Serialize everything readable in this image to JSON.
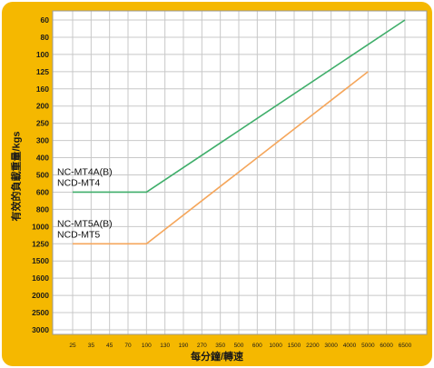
{
  "chart_data": {
    "type": "line",
    "ylabel": "有效的負載重量/kgs",
    "xlabel": "每分鐘/轉速",
    "y_ticks": [
      "60",
      "80",
      "100",
      "125",
      "160",
      "200",
      "250",
      "300",
      "400",
      "500",
      "600",
      "800",
      "1000",
      "1250",
      "1500",
      "1600",
      "2000",
      "2500",
      "3000"
    ],
    "x_ticks": [
      "25",
      "35",
      "45",
      "70",
      "100",
      "130",
      "190",
      "270",
      "350",
      "500",
      "600",
      "1000",
      "1500",
      "2200",
      "3000",
      "4000",
      "5000",
      "6000",
      "6500"
    ],
    "y_axis": "categorical, 60 at top to 3000 at bottom",
    "grid": true,
    "colors": {
      "background": "#f5b800",
      "plot": "#ffffff",
      "grid": "#c8c8c8"
    },
    "series": [
      {
        "name": "NC-MT4A(B) NCD-MT4",
        "label_lines": [
          "NC-MT4A(B)",
          "NCD-MT4"
        ],
        "color": "#3fae6a",
        "points": [
          {
            "x": "25",
            "y": "600"
          },
          {
            "x": "100",
            "y": "600"
          },
          {
            "x": "6500",
            "y": "60"
          }
        ]
      },
      {
        "name": "NC-MT5A(B) NCD-MT5",
        "label_lines": [
          "NC-MT5A(B)",
          "NCD-MT5"
        ],
        "color": "#f5a65b",
        "points": [
          {
            "x": "25",
            "y": "1250"
          },
          {
            "x": "100",
            "y": "1250"
          },
          {
            "x": "5000",
            "y": "125"
          }
        ]
      }
    ]
  }
}
